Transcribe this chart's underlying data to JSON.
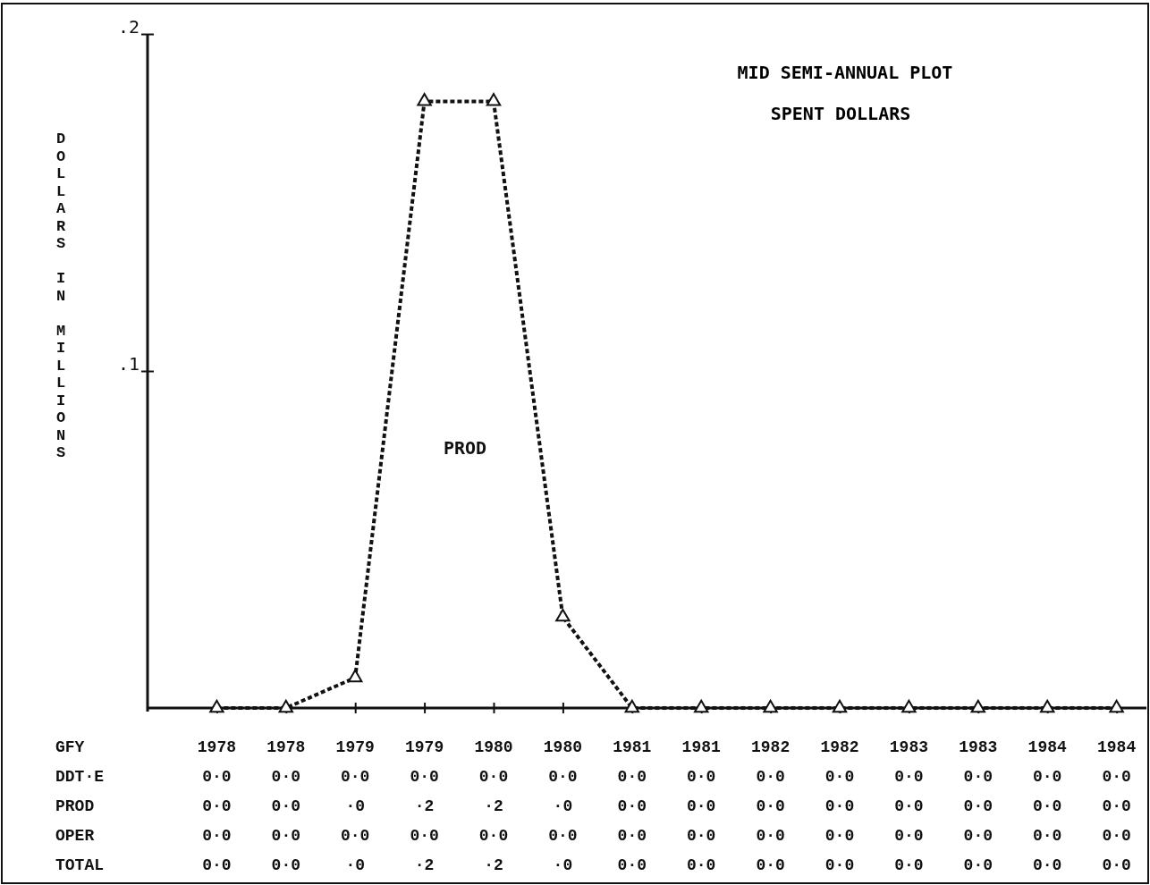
{
  "chart_data": {
    "type": "line",
    "title": "MID SEMI-ANNUAL PLOT",
    "subtitle": "SPENT DOLLARS",
    "ylabel": "DOLLARS IN MILLIONS",
    "xlabel": "GFY",
    "categories": [
      "1978",
      "1978",
      "1979",
      "1979",
      "1980",
      "1980",
      "1981",
      "1981",
      "1982",
      "1982",
      "1983",
      "1983",
      "1984",
      "1984"
    ],
    "ylim": [
      0,
      0.2
    ],
    "yticks": [
      {
        "value": 0.1,
        "label": ".1"
      },
      {
        "value": 0.2,
        "label": ".2"
      }
    ],
    "marker": "triangle",
    "line_style": "dotted",
    "series": [
      {
        "name": "PROD",
        "color": "#111111",
        "values": [
          0,
          0,
          0.009,
          0.18,
          0.18,
          0.027,
          0,
          0,
          0,
          0,
          0,
          0,
          0,
          0
        ]
      }
    ],
    "annotations": [
      "DDT·E",
      "0·0",
      "0·0",
      "0·0",
      "0·0",
      "0·0",
      "0·0",
      "0·0",
      "0·0",
      "0·0",
      "0·0",
      "0·0",
      "0·0",
      "0·0",
      "0·0",
      "PROD",
      "0·0",
      "0·0",
      "·0",
      "·2",
      "·2",
      "·0",
      "0·0",
      "0·0",
      "0·0",
      "0·0",
      "0·0",
      "0·0",
      "0·0",
      "0·0",
      "OPER",
      "0·0",
      "0·0",
      "0·0",
      "0·0",
      "0·0",
      "0·0",
      "0·0",
      "0·0",
      "0·0",
      "0·0",
      "0·0",
      "0·0",
      "0·0",
      "0·0",
      "TOTAL",
      "0·0",
      "0·0",
      "·0",
      "·2",
      "·2",
      "·0",
      "0·0",
      "0·0",
      "0·0",
      "0·0",
      "0·0",
      "0·0",
      "0·0",
      "0·0"
    ]
  }
}
